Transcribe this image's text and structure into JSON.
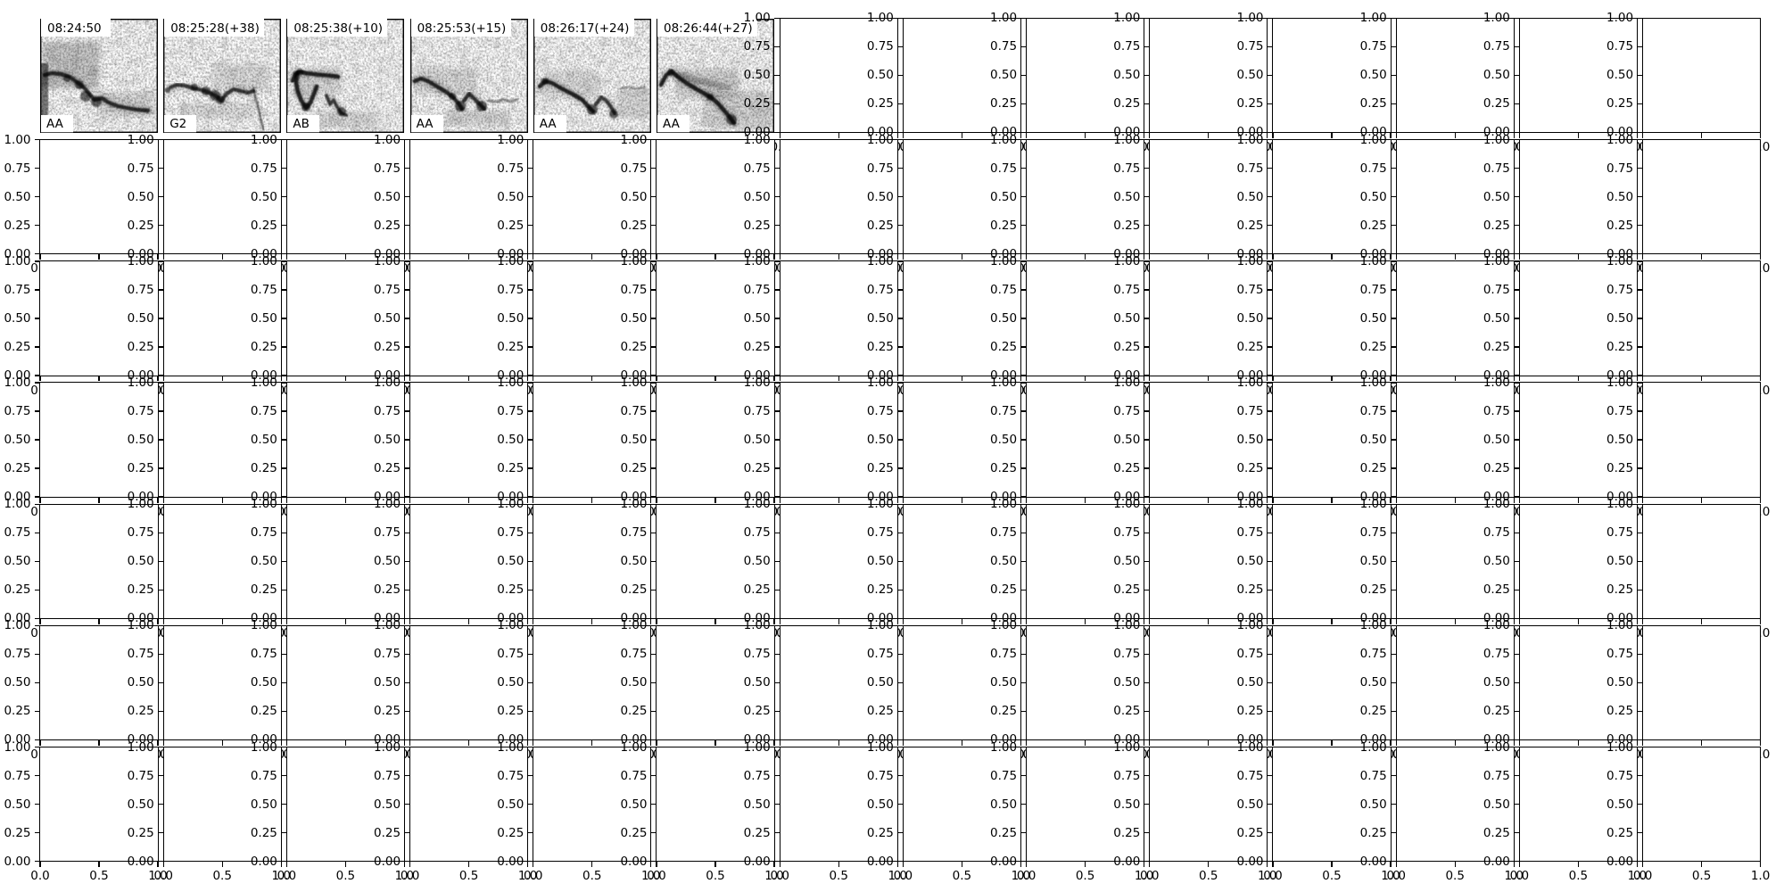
{
  "figure": {
    "background": "#ffffff",
    "ink": "#000000"
  },
  "chart_data": {
    "type": "heatmap",
    "description": "Matplotlib-style figure: 7x14 grid of subplots. The first six cells of the top row contain grayscale bird-call spectrogram thumbnails, each titled with a start timestamp and tagged with a call-class label. All remaining subplots are empty axes with default 0-1 ticks; adjacent tick labels overlap because the subplots are tightly packed.",
    "layout": {
      "rows": 7,
      "cols": 14,
      "spectrogram_row": 0,
      "spectrogram_count": 6,
      "grid_on": false,
      "legend": "none"
    },
    "x_range": [
      0.0,
      1.0
    ],
    "y_range": [
      0.0,
      1.0
    ],
    "x_tick_labels": [
      "0.0",
      "0.5",
      "1.0"
    ],
    "y_tick_labels": [
      "1.00",
      "0.75",
      "0.50",
      "0.25",
      "0.00"
    ],
    "panels": [
      {
        "timestamp": "08:24:50",
        "class_label": "AA",
        "title_box_w": 78,
        "seed": 11,
        "contours": [
          {
            "pts": [
              [
                5,
                63
              ],
              [
                13,
                61
              ],
              [
                23,
                62
              ],
              [
                33,
                65
              ],
              [
                41,
                71
              ],
              [
                49,
                77
              ],
              [
                55,
                84
              ],
              [
                61,
                91
              ],
              [
                69,
                89
              ],
              [
                77,
                94
              ],
              [
                87,
                98
              ],
              [
                97,
                100
              ],
              [
                109,
                102
              ],
              [
                121,
                103
              ]
            ],
            "w": 4.4,
            "op": 0.75
          }
        ],
        "verticals": [
          [
            44,
            30,
            78,
            1.2,
            0.12
          ]
        ],
        "blobs": [
          [
            51,
            87,
            6
          ],
          [
            63,
            93,
            6
          ],
          [
            30,
            67,
            4
          ],
          [
            44,
            74,
            5
          ]
        ],
        "cloud": [
          2,
          26,
          64,
          52,
          0.2
        ],
        "edge": [
          0,
          9,
          50,
          110,
          0.5
        ],
        "smear": [
          64,
          82,
          64,
          28,
          0.12
        ]
      },
      {
        "timestamp": "08:25:28(+38)",
        "class_label": "G2",
        "title_box_w": 112,
        "seed": 23,
        "contours": [
          {
            "pts": [
              [
                8,
                77
              ],
              [
                15,
                74
              ],
              [
                24,
                75
              ],
              [
                34,
                78
              ],
              [
                44,
                80
              ],
              [
                54,
                84
              ],
              [
                61,
                88
              ],
              [
                65,
                92
              ],
              [
                71,
                84
              ],
              [
                79,
                79
              ],
              [
                87,
                81
              ],
              [
                95,
                83
              ],
              [
                101,
                81
              ]
            ],
            "w": 4.2,
            "op": 0.7
          },
          {
            "pts": [
              [
                101,
                78
              ],
              [
                106,
                98
              ],
              [
                112,
                124
              ]
            ],
            "w": 2.2,
            "op": 0.5
          }
        ],
        "verticals": [
          [
            101,
            30,
            118,
            1.4,
            0.3
          ]
        ],
        "blobs": [
          [
            48,
            81,
            5
          ],
          [
            58,
            86,
            6
          ],
          [
            64,
            91,
            5
          ],
          [
            35,
            77,
            4
          ],
          [
            5,
            80,
            3
          ]
        ],
        "cloud": [
          55,
          50,
          65,
          30,
          0.1
        ],
        "edge": null,
        "smear": [
          18,
          94,
          84,
          18,
          0.1
        ]
      },
      {
        "timestamp": "08:25:38(+10)",
        "class_label": "AB",
        "title_box_w": 112,
        "seed": 31,
        "contours": [
          {
            "pts": [
              [
                7,
                70
              ],
              [
                10,
                62
              ],
              [
                15,
                59
              ],
              [
                22,
                61
              ],
              [
                30,
                62
              ],
              [
                40,
                63
              ],
              [
                50,
                64
              ],
              [
                58,
                65
              ]
            ],
            "w": 4.6,
            "op": 0.8
          },
          {
            "pts": [
              [
                12,
                62
              ],
              [
                11,
                72
              ],
              [
                13,
                82
              ],
              [
                17,
                92
              ],
              [
                22,
                100
              ],
              [
                27,
                94
              ],
              [
                31,
                84
              ],
              [
                34,
                76
              ]
            ],
            "w": 4.6,
            "op": 0.8
          },
          {
            "pts": [
              [
                45,
                86
              ],
              [
                49,
                96
              ],
              [
                53,
                91
              ],
              [
                57,
                99
              ],
              [
                62,
                106
              ],
              [
                67,
                108
              ]
            ],
            "w": 3.6,
            "op": 0.7
          }
        ],
        "verticals": [
          [
            74,
            26,
            112,
            2.6,
            0.8
          ],
          [
            95,
            0,
            72,
            1.4,
            0.3
          ]
        ],
        "blobs": [
          [
            22,
            99,
            5
          ],
          [
            62,
            104,
            5
          ],
          [
            15,
            60,
            4
          ]
        ],
        "cloud": [
          5,
          55,
          55,
          30,
          0.1
        ],
        "edge": null,
        "smear": [
          30,
          104,
          72,
          18,
          0.12
        ]
      },
      {
        "timestamp": "08:25:53(+15)",
        "class_label": "AA",
        "title_box_w": 112,
        "seed": 43,
        "contours": [
          {
            "pts": [
              [
                5,
                70
              ],
              [
                12,
                67
              ],
              [
                20,
                70
              ],
              [
                30,
                76
              ],
              [
                40,
                82
              ],
              [
                48,
                88
              ],
              [
                54,
                95
              ],
              [
                58,
                101
              ]
            ],
            "w": 4.4,
            "op": 0.78
          },
          {
            "pts": [
              [
                60,
                92
              ],
              [
                66,
                84
              ],
              [
                71,
                89
              ],
              [
                77,
                95
              ],
              [
                83,
                101
              ]
            ],
            "w": 4.2,
            "op": 0.75
          },
          {
            "pts": [
              [
                88,
                92
              ],
              [
                96,
                94
              ],
              [
                104,
                90
              ],
              [
                112,
                93
              ],
              [
                120,
                90
              ]
            ],
            "w": 3.2,
            "op": 0.35
          }
        ],
        "verticals": [
          [
            62,
            2,
            58,
            1.3,
            0.35
          ],
          [
            93,
            35,
            95,
            2.0,
            0.22
          ]
        ],
        "blobs": [
          [
            56,
            98,
            6
          ],
          [
            80,
            98,
            6
          ],
          [
            47,
            87,
            4
          ]
        ],
        "cloud": [
          5,
          55,
          70,
          30,
          0.12
        ],
        "edge": null,
        "smear": [
          38,
          102,
          74,
          18,
          0.13
        ]
      },
      {
        "timestamp": "08:26:17(+24)",
        "class_label": "AA",
        "title_box_w": 112,
        "seed": 57,
        "contours": [
          {
            "pts": [
              [
                7,
                76
              ],
              [
                13,
                70
              ],
              [
                21,
                72
              ],
              [
                31,
                78
              ],
              [
                43,
                84
              ],
              [
                55,
                91
              ],
              [
                62,
                99
              ],
              [
                67,
                104
              ]
            ],
            "w": 4.5,
            "op": 0.8
          },
          {
            "pts": [
              [
                70,
                96
              ],
              [
                76,
                88
              ],
              [
                82,
                92
              ],
              [
                87,
                99
              ],
              [
                91,
                106
              ]
            ],
            "w": 4.0,
            "op": 0.7
          },
          {
            "pts": [
              [
                97,
                79
              ],
              [
                106,
                76
              ],
              [
                115,
                79
              ],
              [
                124,
                77
              ]
            ],
            "w": 3.0,
            "op": 0.28
          }
        ],
        "verticals": [
          [
            92,
            16,
            114,
            2.6,
            0.85
          ]
        ],
        "blobs": [
          [
            66,
            102,
            6
          ],
          [
            90,
            107,
            5
          ],
          [
            13,
            70,
            4
          ]
        ],
        "cloud": [
          12,
          58,
          62,
          30,
          0.1
        ],
        "edge": null,
        "smear": [
          94,
          80,
          36,
          32,
          0.12
        ]
      },
      {
        "timestamp": "08:26:44(+27)",
        "class_label": "AA",
        "title_box_w": 112,
        "seed": 71,
        "contours": [
          {
            "pts": [
              [
                5,
                74
              ],
              [
                11,
                63
              ],
              [
                17,
                59
              ],
              [
                25,
                66
              ],
              [
                35,
                73
              ],
              [
                45,
                79
              ],
              [
                54,
                84
              ],
              [
                62,
                89
              ],
              [
                69,
                95
              ],
              [
                75,
                102
              ],
              [
                81,
                109
              ],
              [
                87,
                117
              ]
            ],
            "w": 4.6,
            "op": 0.8
          },
          {
            "pts": [
              [
                20,
                62
              ],
              [
                35,
                66
              ],
              [
                50,
                70
              ],
              [
                65,
                74
              ],
              [
                80,
                78
              ]
            ],
            "w": 7,
            "op": 0.18
          }
        ],
        "verticals": [
          [
            92,
            0,
            82,
            1.7,
            0.6
          ],
          [
            99,
            30,
            90,
            1.2,
            0.18
          ]
        ],
        "blobs": [
          [
            84,
            113,
            6
          ],
          [
            16,
            60,
            4
          ],
          [
            60,
            88,
            4
          ]
        ],
        "cloud": [
          22,
          56,
          70,
          32,
          0.15
        ],
        "edge": null,
        "smear": [
          52,
          82,
          78,
          40,
          0.14
        ]
      }
    ]
  }
}
